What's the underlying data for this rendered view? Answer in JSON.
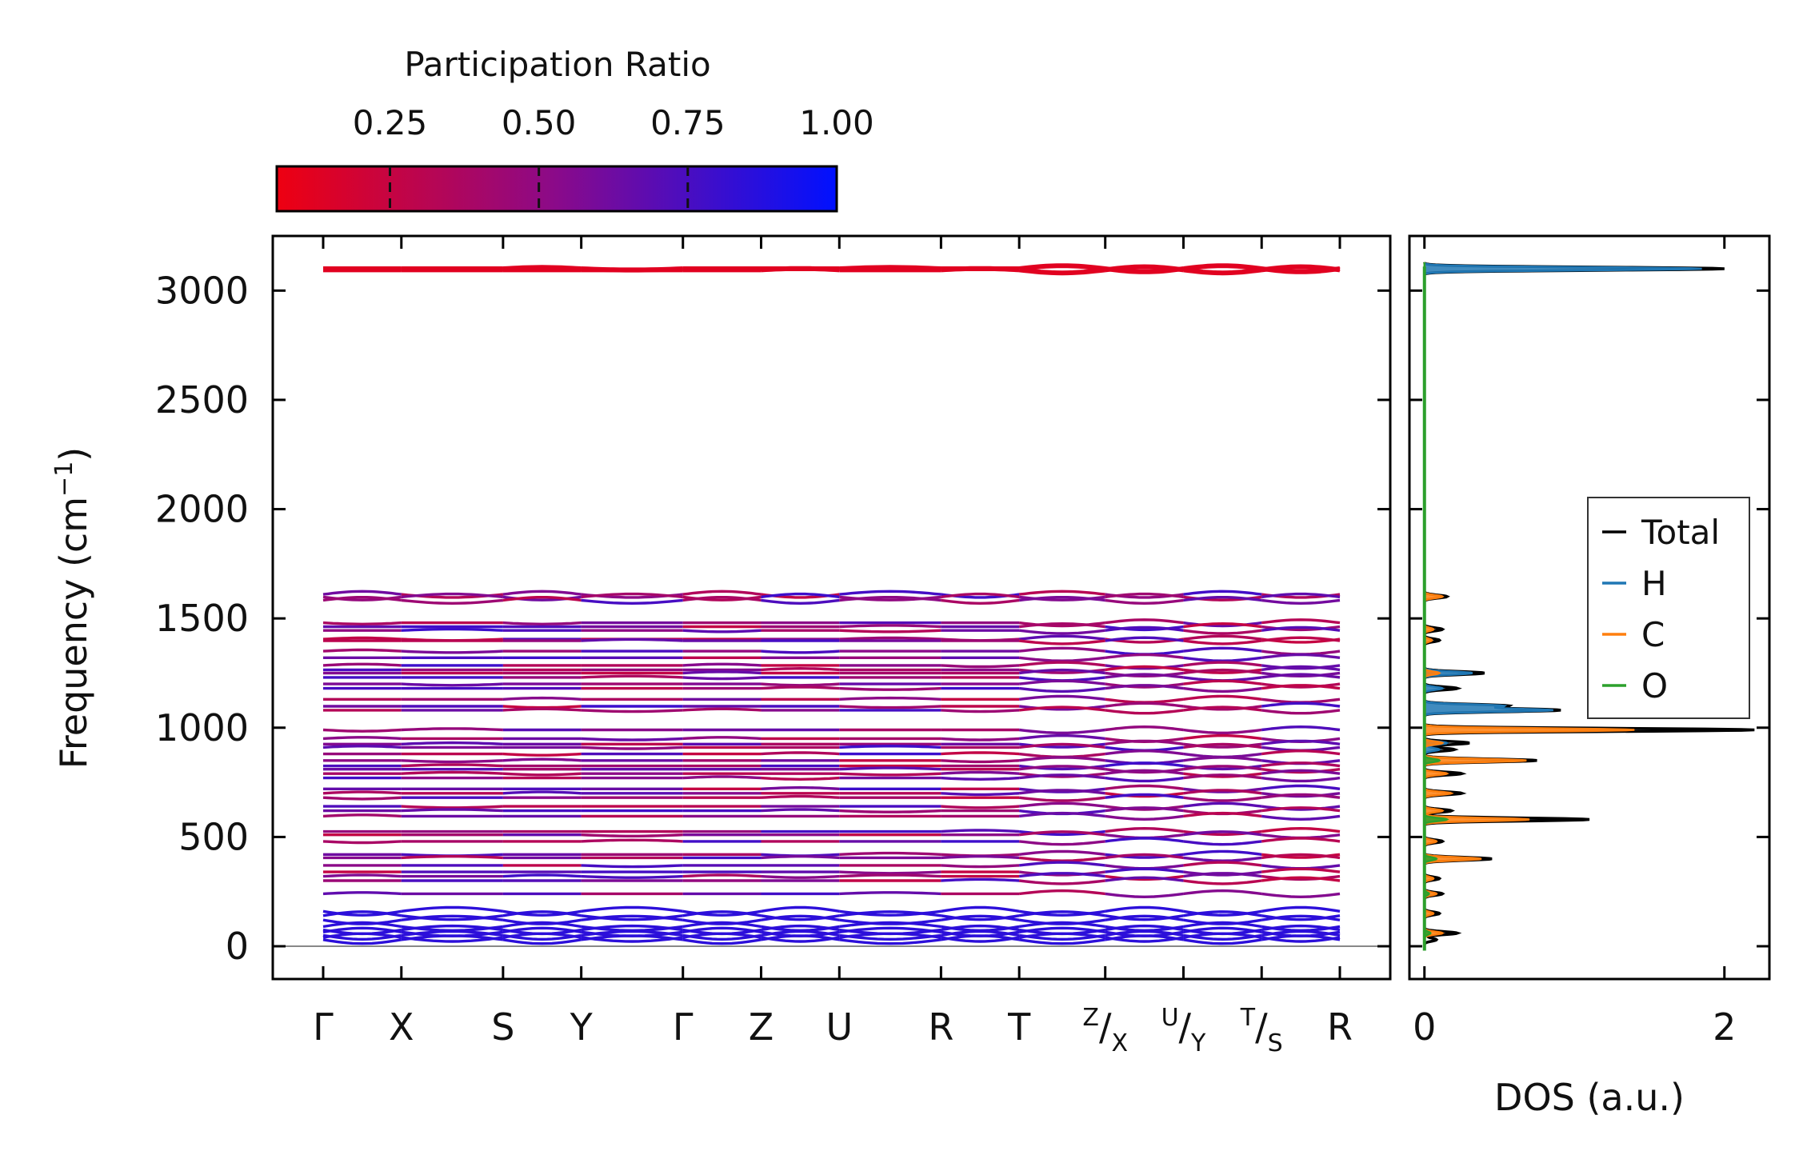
{
  "chart_data": [
    {
      "type": "line",
      "title": "",
      "xlabel": "",
      "ylabel_main": "Frequency (cm",
      "ylabel_sup": "−1",
      "ylabel_close": ")",
      "ylim": [
        -150,
        3250
      ],
      "yticks": [
        0,
        500,
        1000,
        1500,
        2000,
        2500,
        3000
      ],
      "ytick_labels": [
        "0",
        "500",
        "1000",
        "1500",
        "2000",
        "2500",
        "3000"
      ],
      "x_range": [
        -0.5,
        11.5
      ],
      "kpath_labels": [
        {
          "id": "gamma1",
          "x": 0,
          "main": "Γ"
        },
        {
          "id": "x",
          "x": 1,
          "main": "X"
        },
        {
          "id": "s",
          "x": 2.3,
          "main": "S"
        },
        {
          "id": "y",
          "x": 3.3,
          "main": "Y"
        },
        {
          "id": "gamma2",
          "x": 4.6,
          "main": "Γ"
        },
        {
          "id": "z",
          "x": 5.6,
          "main": "Z"
        },
        {
          "id": "u",
          "x": 6.6,
          "main": "U"
        },
        {
          "id": "r",
          "x": 7.9,
          "main": "R"
        },
        {
          "id": "t",
          "x": 8.9,
          "main": "T"
        },
        {
          "id": "zx",
          "x": 10.0,
          "pre": "Z",
          "main": "/",
          "sub": "X"
        },
        {
          "id": "uy",
          "x": 11.0,
          "pre": "U",
          "main": "/",
          "sub": "Y"
        },
        {
          "id": "ts",
          "x": 12.0,
          "pre": "T",
          "main": "/",
          "sub": "S"
        },
        {
          "id": "r2",
          "x": 13.0,
          "main": "R"
        }
      ],
      "segments": [
        [
          0,
          1
        ],
        [
          1,
          2.3
        ],
        [
          2.3,
          3.3
        ],
        [
          3.3,
          4.6
        ],
        [
          4.6,
          5.6
        ],
        [
          5.6,
          6.6
        ],
        [
          6.6,
          7.9
        ],
        [
          7.9,
          8.9
        ],
        [
          8.9,
          10.0
        ],
        [
          10.0,
          11.0
        ],
        [
          11.0,
          12.0
        ],
        [
          12.0,
          13.0
        ]
      ],
      "band_frequencies": [
        3100,
        3095,
        1610,
        1598,
        1583,
        1480,
        1462,
        1445,
        1405,
        1398,
        1350,
        1320,
        1285,
        1265,
        1250,
        1230,
        1200,
        1180,
        1130,
        1098,
        1080,
        990,
        950,
        925,
        910,
        880,
        850,
        825,
        810,
        790,
        770,
        720,
        700,
        680,
        640,
        620,
        595,
        525,
        510,
        480,
        420,
        405,
        370,
        340,
        320,
        300,
        240,
        160,
        140,
        120,
        90,
        75,
        65,
        50,
        40,
        30
      ],
      "zero_line": 0
    },
    {
      "type": "area",
      "xlabel": "DOS (a.u.)",
      "xlim": [
        -0.1,
        2.3
      ],
      "xticks": [
        0,
        2
      ],
      "xtick_labels": [
        "0",
        "2"
      ],
      "ylim": [
        -150,
        3250
      ],
      "series": [
        {
          "name": "Total",
          "color": "#000000",
          "peaks": [
            [
              3100,
              2.0
            ],
            [
              1600,
              0.15
            ],
            [
              1450,
              0.12
            ],
            [
              1400,
              0.1
            ],
            [
              1250,
              0.4
            ],
            [
              1180,
              0.22
            ],
            [
              1100,
              0.55
            ],
            [
              1080,
              0.9
            ],
            [
              990,
              2.2
            ],
            [
              930,
              0.3
            ],
            [
              900,
              0.2
            ],
            [
              850,
              0.75
            ],
            [
              790,
              0.25
            ],
            [
              700,
              0.25
            ],
            [
              620,
              0.18
            ],
            [
              580,
              1.1
            ],
            [
              480,
              0.12
            ],
            [
              400,
              0.45
            ],
            [
              310,
              0.1
            ],
            [
              240,
              0.12
            ],
            [
              150,
              0.1
            ],
            [
              60,
              0.22
            ],
            [
              30,
              0.08
            ]
          ]
        },
        {
          "name": "H",
          "color": "#1f77b4",
          "peaks": [
            [
              3100,
              1.85
            ],
            [
              1250,
              0.32
            ],
            [
              1180,
              0.12
            ],
            [
              1100,
              0.52
            ],
            [
              1080,
              0.85
            ],
            [
              930,
              0.15
            ],
            [
              900,
              0.1
            ]
          ]
        },
        {
          "name": "C",
          "color": "#ff7f0e",
          "peaks": [
            [
              1600,
              0.12
            ],
            [
              1450,
              0.06
            ],
            [
              1400,
              0.05
            ],
            [
              1250,
              0.1
            ],
            [
              990,
              1.4
            ],
            [
              930,
              0.12
            ],
            [
              850,
              0.68
            ],
            [
              790,
              0.15
            ],
            [
              700,
              0.18
            ],
            [
              620,
              0.12
            ],
            [
              580,
              0.7
            ],
            [
              480,
              0.08
            ],
            [
              400,
              0.38
            ],
            [
              310,
              0.06
            ],
            [
              240,
              0.08
            ],
            [
              150,
              0.06
            ],
            [
              60,
              0.12
            ]
          ]
        },
        {
          "name": "O",
          "color": "#2ca02c",
          "peaks": [
            [
              850,
              0.1
            ],
            [
              580,
              0.15
            ],
            [
              400,
              0.08
            ],
            [
              240,
              0.03
            ],
            [
              60,
              0.04
            ]
          ]
        }
      ],
      "legend_position": "center-right"
    }
  ],
  "colorbar": {
    "label": "Participation Ratio",
    "ticks": [
      0.25,
      0.5,
      0.75,
      1.0
    ],
    "tick_labels": [
      "0.25",
      "0.50",
      "0.75",
      "1.00"
    ],
    "range": [
      0.06,
      1.0
    ],
    "color_low": "#ee0011",
    "color_high": "#0011ff"
  },
  "legend": {
    "entries": [
      {
        "label": "Total",
        "color": "#000000"
      },
      {
        "label": "H",
        "color": "#1f77b4"
      },
      {
        "label": "C",
        "color": "#ff7f0e"
      },
      {
        "label": "O",
        "color": "#2ca02c"
      }
    ]
  }
}
